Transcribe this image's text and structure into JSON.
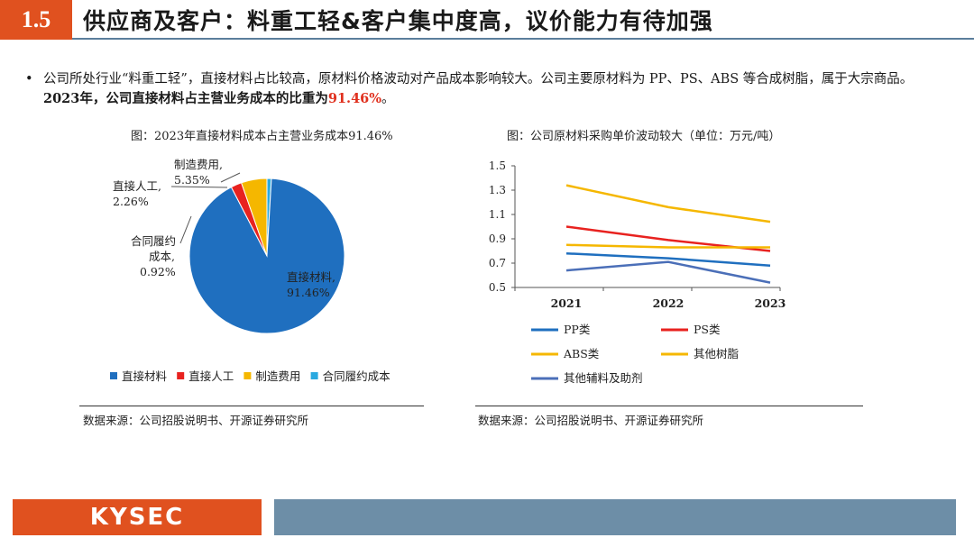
{
  "header": {
    "section_number": "1.5",
    "title": "供应商及客户：料重工轻&客户集中度高，议价能力有待加强"
  },
  "bullet": {
    "marker": "•",
    "text_a": "公司所处行业“料重工轻”，直接材料占比较高，原材料价格波动对产品成本影响较大。公司主要原材料为 PP、PS、ABS 等合成树脂，属于大宗商品。",
    "text_b": "2023年，公司直接材料占主营业务成本的比重为",
    "text_c": "91.46%",
    "text_d": "。"
  },
  "left_chart": {
    "caption": "图：2023年直接材料成本占主营业务成本91.46%",
    "source": "数据来源：公司招股说明书、开源证券研究所"
  },
  "right_chart": {
    "caption": "图：公司原材料采购单价波动较大（单位：万元/吨）",
    "source": "数据来源：公司招股说明书、开源证券研究所"
  },
  "chart_data": [
    {
      "type": "pie",
      "title": "图：2023年直接材料成本占主营业务成本91.46%",
      "slices": [
        {
          "name": "直接材料",
          "value": 91.46,
          "color": "#1f6fbf",
          "label_lines": [
            "直接材料,",
            "91.46%"
          ]
        },
        {
          "name": "直接人工",
          "value": 2.26,
          "color": "#e8221f",
          "label_lines": [
            "直接人工,",
            "2.26%"
          ]
        },
        {
          "name": "制造费用",
          "value": 5.35,
          "color": "#f5b700",
          "label_lines": [
            "制造费用,",
            "5.35%"
          ]
        },
        {
          "name": "合同履约成本",
          "value": 0.92,
          "color": "#29a9e0",
          "label_lines": [
            "合同履约",
            "成本,",
            "0.92%"
          ]
        }
      ],
      "legend": [
        "直接材料",
        "直接人工",
        "制造费用",
        "合同履约成本"
      ],
      "legend_position": "bottom"
    },
    {
      "type": "line",
      "title": "图：公司原材料采购单价波动较大（单位：万元/吨）",
      "x": [
        "2021",
        "2022",
        "2023"
      ],
      "ylim": [
        0.5,
        1.5
      ],
      "yticks": [
        "0.5",
        "0.7",
        "0.9",
        "1.1",
        "1.3",
        "1.5"
      ],
      "series": [
        {
          "name": "PP类",
          "values": [
            0.78,
            0.74,
            0.68
          ],
          "color": "#1f6fbf"
        },
        {
          "name": "PS类",
          "values": [
            1.0,
            0.89,
            0.8
          ],
          "color": "#e8221f"
        },
        {
          "name": "ABS类",
          "values": [
            1.34,
            1.16,
            1.04
          ],
          "color": "#f5b700"
        },
        {
          "name": "其他树脂",
          "values": [
            0.85,
            0.83,
            0.83
          ],
          "color": "#f5b700"
        },
        {
          "name": "其他辅料及助剂",
          "values": [
            0.64,
            0.71,
            0.54
          ],
          "color": "#4b6fb8"
        }
      ],
      "legend_position": "bottom",
      "grid": false
    }
  ],
  "footer": {
    "logo": "KYSEC"
  }
}
